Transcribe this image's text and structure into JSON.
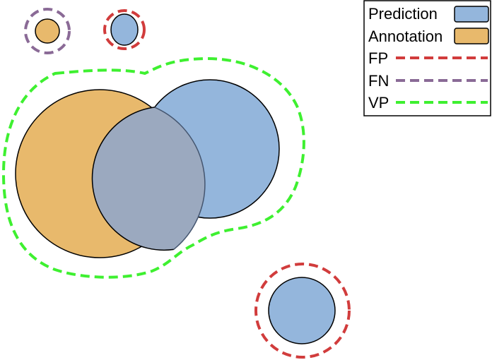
{
  "colors": {
    "prediction": "#94b6dc",
    "annotation": "#e8b96c",
    "overlap": "#9ba9bf",
    "false_positive": "#d13c3c",
    "false_negative": "#8a6a96",
    "true_positive": "#3ef030",
    "outline": "#000000"
  },
  "legend": {
    "prediction": "Prediction",
    "annotation": "Annotation",
    "false_positive": "FP",
    "false_negative": "FN",
    "true_positive": "VP"
  }
}
